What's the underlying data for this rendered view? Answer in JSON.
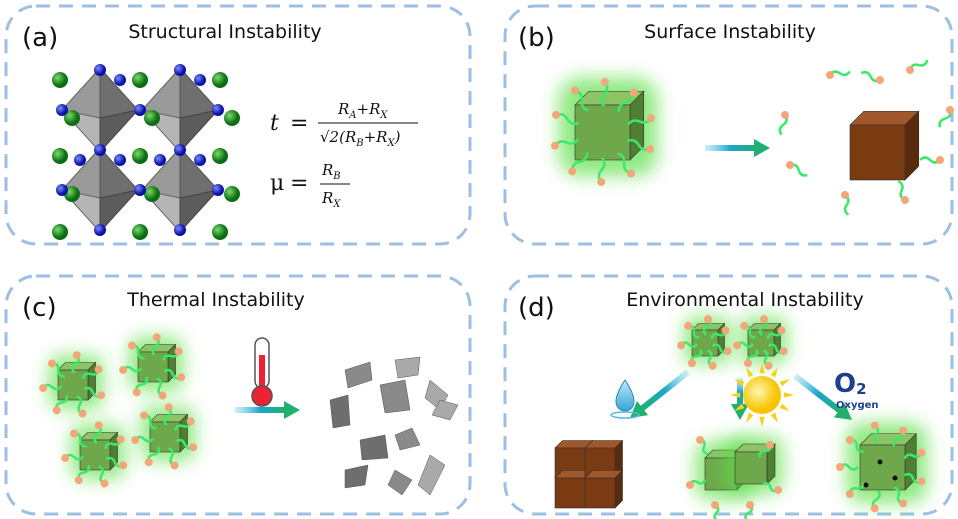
{
  "panels": [
    {
      "label": "(a)",
      "title": "Structural Instability"
    },
    {
      "label": "(b)",
      "title": "Surface Instability"
    },
    {
      "label": "(c)",
      "title": "Thermal Instability"
    },
    {
      "label": "(d)",
      "title": "Environmental Instability"
    }
  ],
  "formulas": {
    "tolerance": {
      "lhs": "t",
      "eq": "=",
      "num": [
        "R",
        "A",
        "+R",
        "X"
      ],
      "den": [
        "√2(R",
        "B",
        "+R",
        "X",
        ")"
      ]
    },
    "octahedral": {
      "lhs": "μ",
      "eq": "=",
      "num": [
        "R",
        "B"
      ],
      "den": [
        "R",
        "X"
      ]
    }
  },
  "oxygen": {
    "symbol": "O",
    "subscript": "2",
    "label": "Oxygen"
  }
}
